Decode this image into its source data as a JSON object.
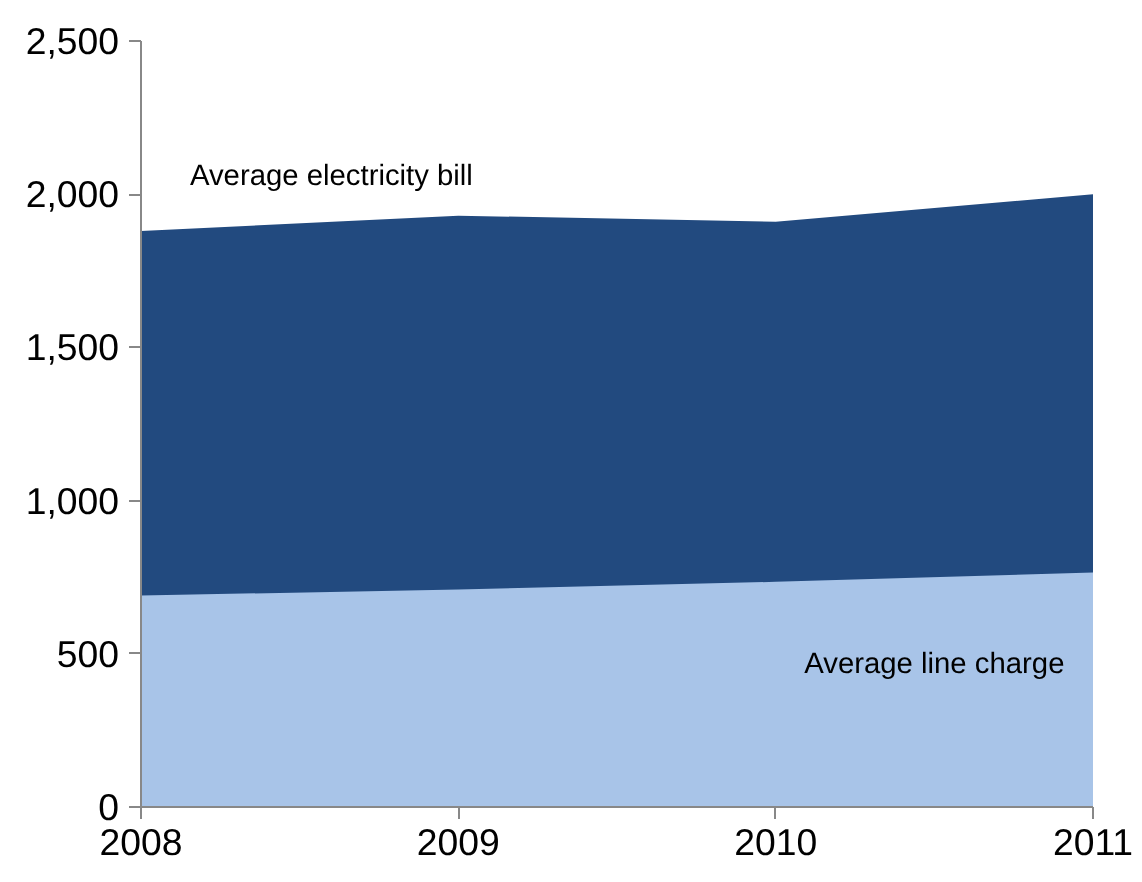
{
  "chart_data": {
    "type": "area",
    "x": [
      2008,
      2009,
      2010,
      2011
    ],
    "series": [
      {
        "name": "Average electricity bill",
        "color": "#224a7f",
        "values": [
          1880,
          1930,
          1910,
          2000
        ]
      },
      {
        "name": "Average line charge",
        "color": "#a8c4e8",
        "values": [
          690,
          710,
          735,
          765
        ]
      }
    ],
    "xlim": [
      2008,
      2011
    ],
    "xticks": [
      2008,
      2009,
      2010,
      2011
    ],
    "ylim": [
      0,
      2500
    ],
    "yticks": [
      {
        "value": 0,
        "label": "0"
      },
      {
        "value": 500,
        "label": "500"
      },
      {
        "value": 1000,
        "label": "1,000"
      },
      {
        "value": 1500,
        "label": "1,500"
      },
      {
        "value": 2000,
        "label": "2,000"
      },
      {
        "value": 2500,
        "label": "2,500"
      }
    ],
    "grid": false
  }
}
